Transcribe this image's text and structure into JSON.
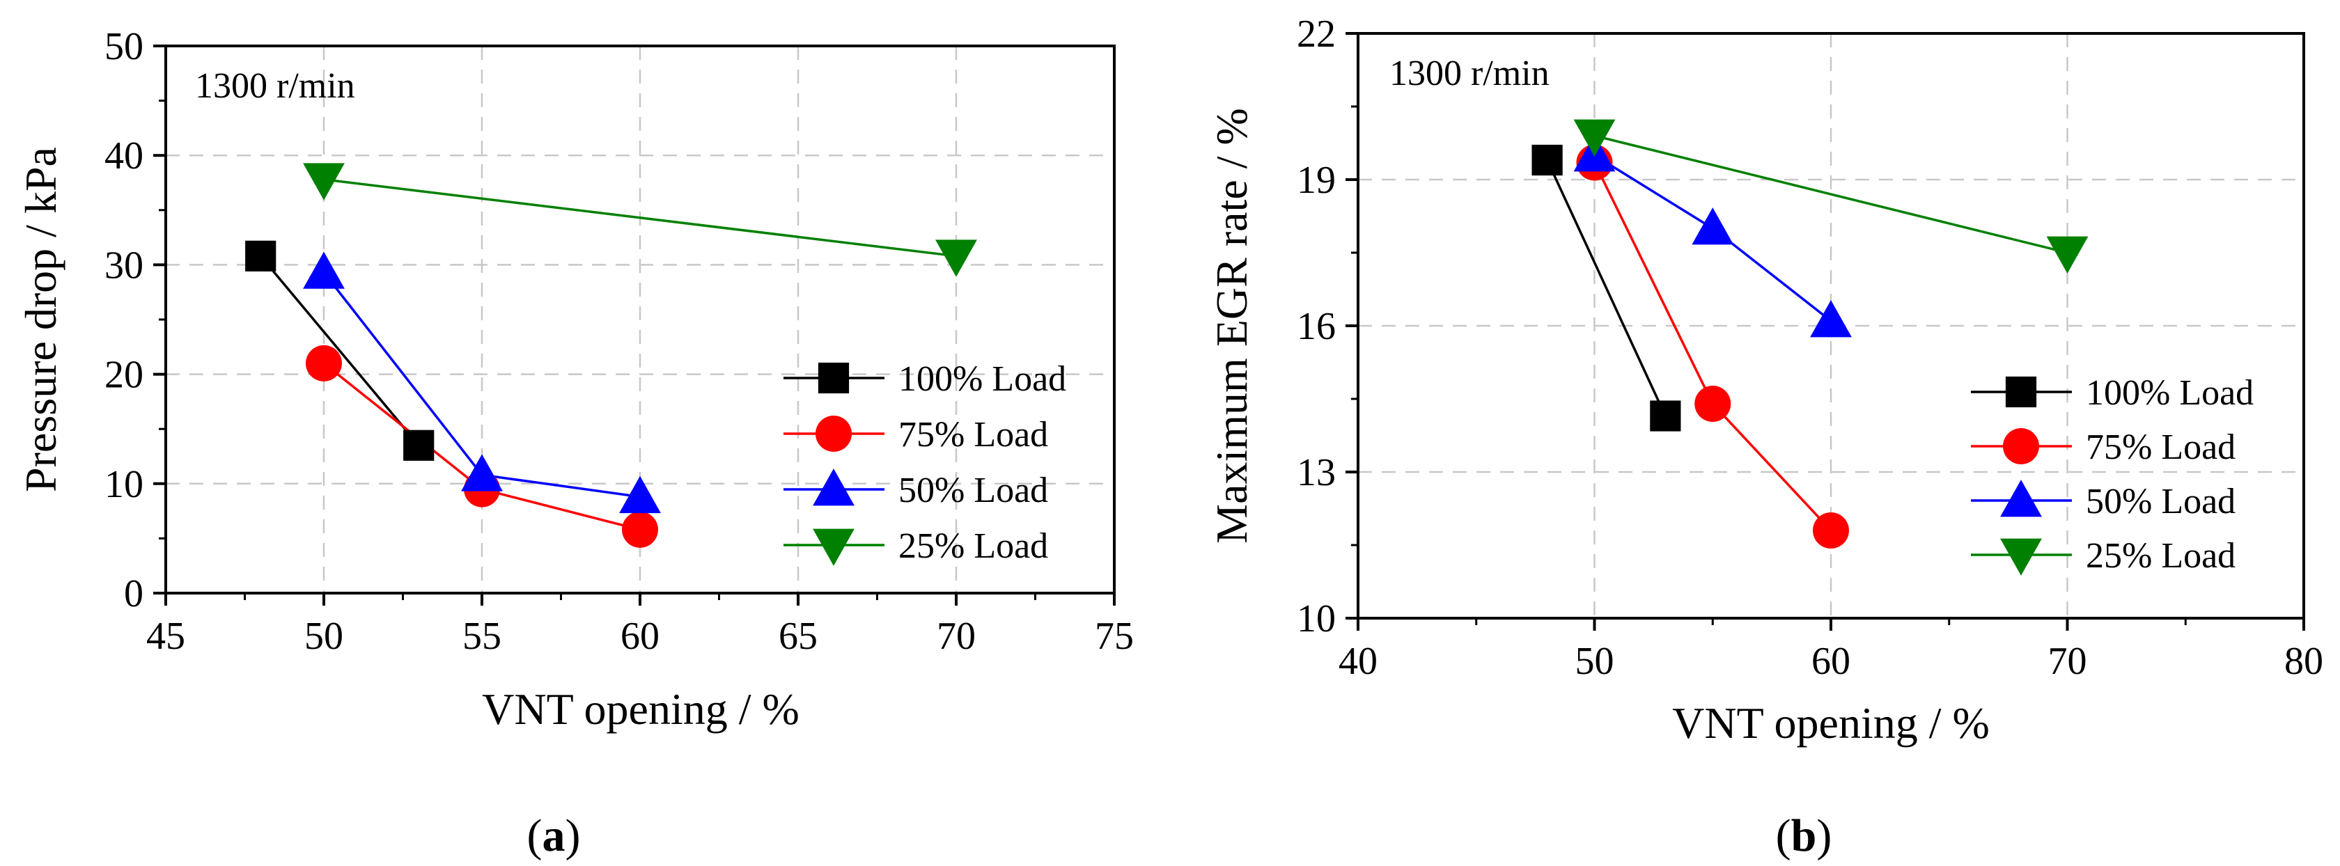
{
  "chart_data": [
    {
      "type": "line",
      "panel_label": "a",
      "annotation": "1300 r/min",
      "xlabel": "VNT opening / %",
      "ylabel": "Pressure drop / kPa",
      "xlim": [
        45,
        75
      ],
      "ylim": [
        0,
        50
      ],
      "xticks": [
        45,
        50,
        55,
        60,
        65,
        70,
        75
      ],
      "yticks": [
        0,
        10,
        20,
        30,
        40,
        50
      ],
      "grid": true,
      "legend_position": "right",
      "series": [
        {
          "name": "100% Load",
          "color": "#000000",
          "marker": "square",
          "x": [
            48,
            53
          ],
          "y": [
            30.8,
            13.5
          ]
        },
        {
          "name": "75% Load",
          "color": "#ff0000",
          "marker": "circle",
          "x": [
            50,
            55,
            60
          ],
          "y": [
            21,
            9.5,
            5.8
          ]
        },
        {
          "name": "50% Load",
          "color": "#0000ff",
          "marker": "triangle-up",
          "x": [
            50,
            55,
            60
          ],
          "y": [
            29.3,
            10.8,
            8.8
          ]
        },
        {
          "name": "25% Load",
          "color": "#008000",
          "marker": "triangle-down",
          "x": [
            50,
            70
          ],
          "y": [
            37.8,
            30.8
          ]
        }
      ]
    },
    {
      "type": "line",
      "panel_label": "b",
      "annotation": "1300 r/min",
      "xlabel": "VNT opening / %",
      "ylabel": "Maximum EGR rate / %",
      "xlim": [
        40,
        80
      ],
      "ylim": [
        10,
        22
      ],
      "xticks": [
        40,
        50,
        60,
        70,
        80
      ],
      "yticks": [
        10,
        13,
        16,
        19,
        22
      ],
      "grid": true,
      "legend_position": "bottom-right",
      "series": [
        {
          "name": "100% Load",
          "color": "#000000",
          "marker": "square",
          "x": [
            48,
            53
          ],
          "y": [
            19.4,
            14.15
          ]
        },
        {
          "name": "75% Load",
          "color": "#ff0000",
          "marker": "circle",
          "x": [
            50,
            55,
            60
          ],
          "y": [
            19.35,
            14.4,
            11.8
          ]
        },
        {
          "name": "50% Load",
          "color": "#0000ff",
          "marker": "triangle-up",
          "x": [
            50,
            55,
            60
          ],
          "y": [
            19.5,
            18,
            16.1
          ]
        },
        {
          "name": "25% Load",
          "color": "#008000",
          "marker": "triangle-down",
          "x": [
            50,
            70
          ],
          "y": [
            19.9,
            17.5
          ]
        }
      ]
    }
  ]
}
